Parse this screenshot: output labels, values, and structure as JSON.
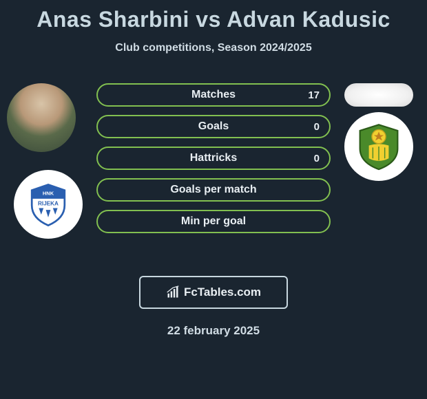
{
  "title": "Anas Sharbini vs Advan Kadusic",
  "subtitle": "Club competitions, Season 2024/2025",
  "stats": [
    {
      "label": "Matches",
      "value_right": "17"
    },
    {
      "label": "Goals",
      "value_right": "0"
    },
    {
      "label": "Hattricks",
      "value_right": "0"
    },
    {
      "label": "Goals per match",
      "value_right": ""
    },
    {
      "label": "Min per goal",
      "value_right": ""
    }
  ],
  "bar_border_color": "#82c050",
  "bar_text_color": "#e8eef2",
  "branding_text": "FcTables.com",
  "date": "22 february 2025",
  "clubs": {
    "left": {
      "name": "HNK Rijeka",
      "shield_bg": "#ffffff",
      "shield_accent": "#2a5fb0",
      "text": "RIJEKA"
    },
    "right": {
      "name": "Istra 1961",
      "shield_bg": "#4a8a2a",
      "shield_accent": "#f0d030"
    }
  },
  "colors": {
    "background": "#1a2530",
    "title": "#c8d8e0",
    "subtitle": "#d0dce4"
  }
}
